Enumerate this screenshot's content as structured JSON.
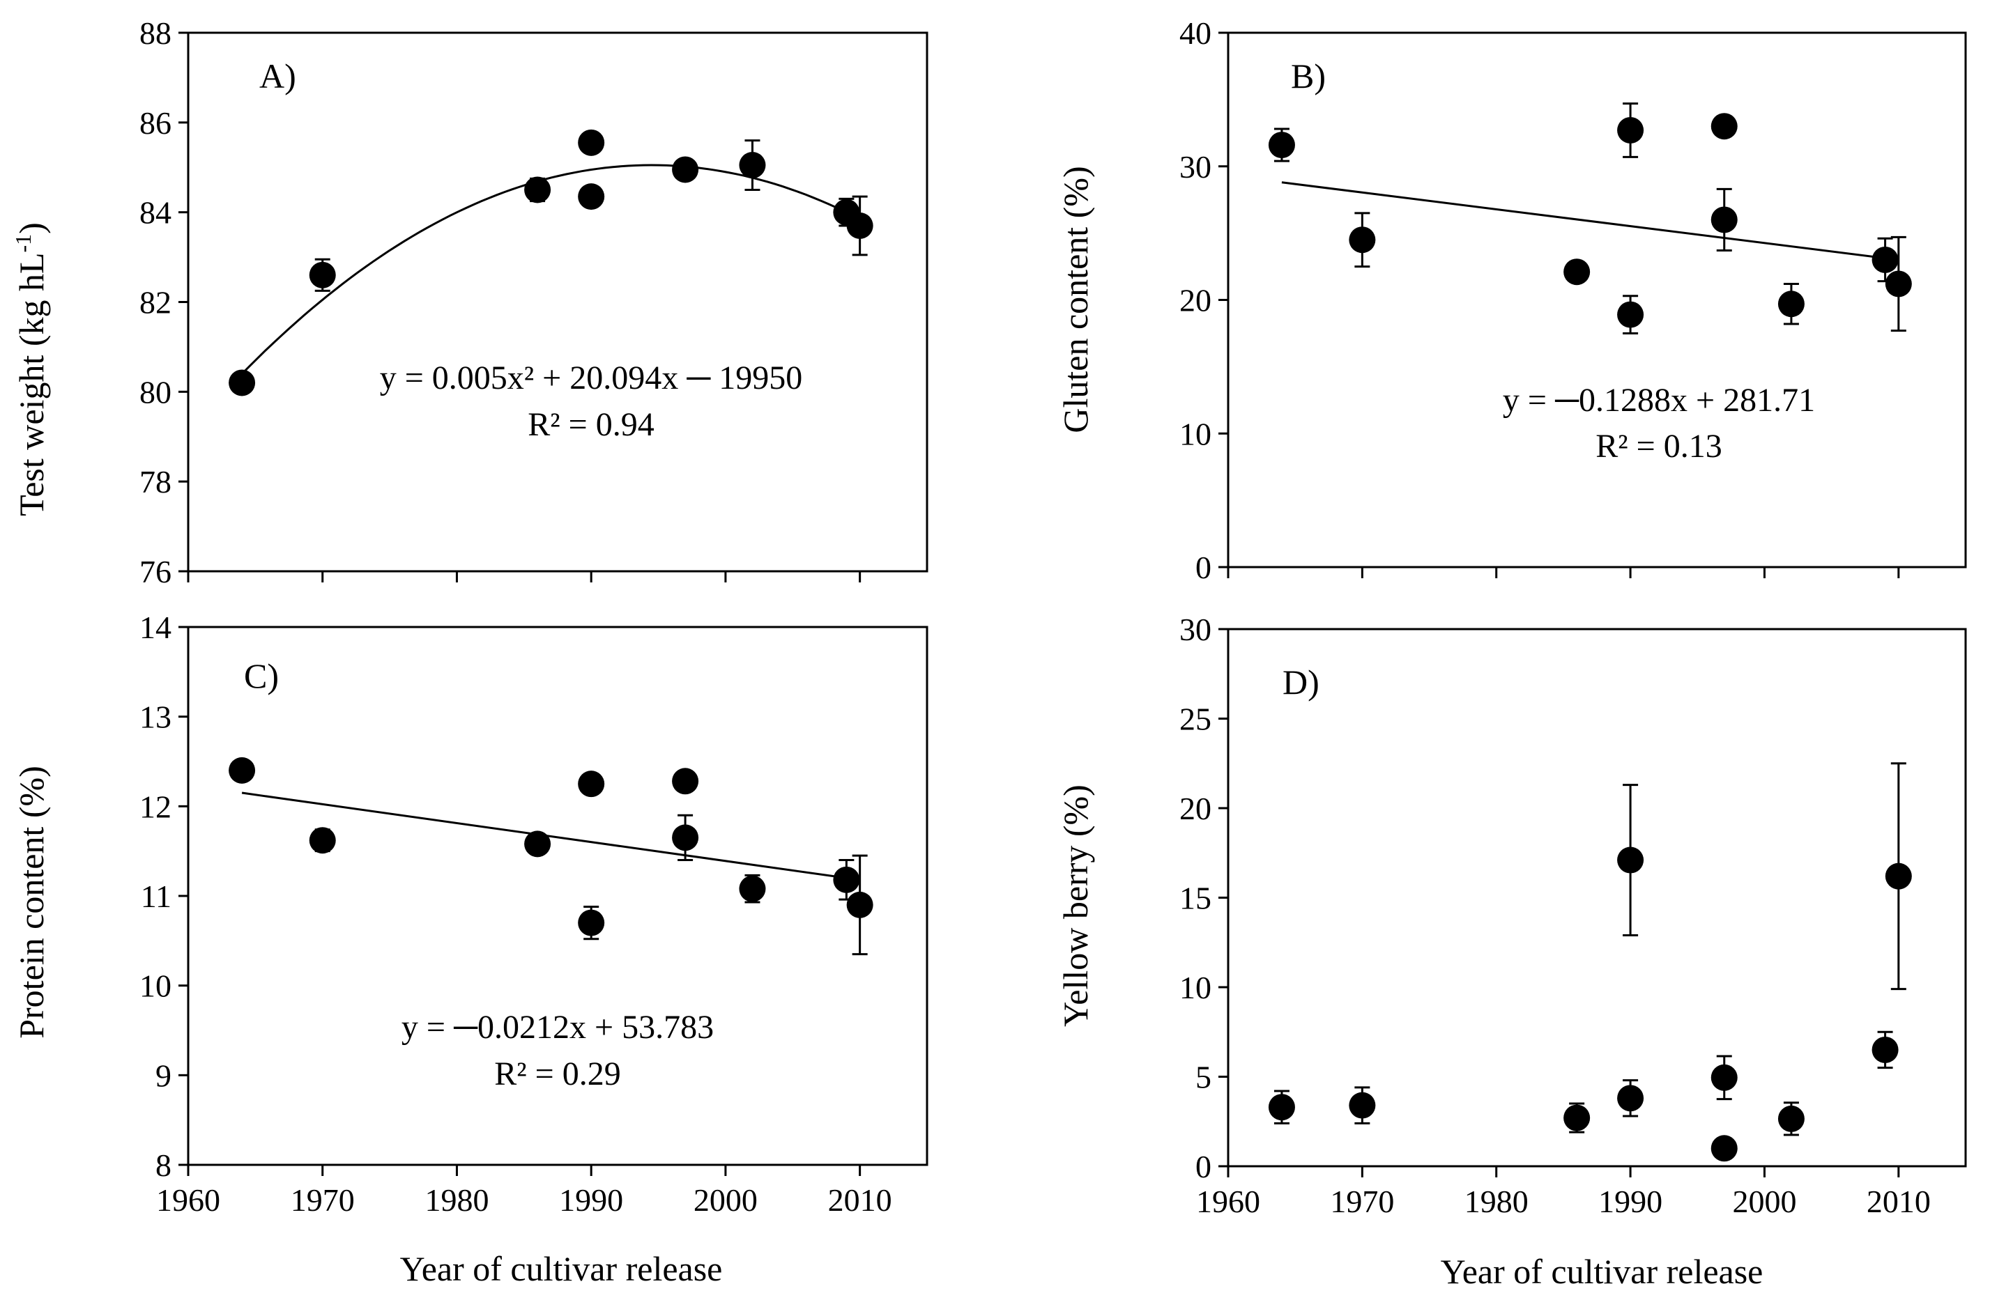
{
  "figure": {
    "xlabel_bottom": "Year of cultivar release"
  },
  "chart_data": [
    {
      "type": "scatter",
      "panel": "A)",
      "ylabel": "Test weight (kg hL",
      "ylabel_sup": "-1",
      "ylabel_close": ")",
      "xlim": [
        1960,
        2015
      ],
      "ylim": [
        76,
        88
      ],
      "xticks": [
        1960,
        1970,
        1980,
        1990,
        2000,
        2010
      ],
      "yticks": [
        76,
        78,
        80,
        82,
        84,
        86,
        88
      ],
      "show_xtick_labels": false,
      "points": [
        {
          "x": 1964,
          "y": 80.2,
          "err": 0.1
        },
        {
          "x": 1970,
          "y": 82.6,
          "err": 0.35
        },
        {
          "x": 1986,
          "y": 84.5,
          "err": 0.25
        },
        {
          "x": 1990,
          "y": 85.55,
          "err": 0.1
        },
        {
          "x": 1990,
          "y": 84.35,
          "err": 0.1
        },
        {
          "x": 1997,
          "y": 84.95,
          "err": 0.15
        },
        {
          "x": 2002,
          "y": 85.05,
          "err": 0.55
        },
        {
          "x": 2009,
          "y": 84.0,
          "err": 0.3
        },
        {
          "x": 2010,
          "y": 83.7,
          "err": 0.65
        }
      ],
      "trend": {
        "kind": "quadratic",
        "vertex_x": 1994.5,
        "vertex_y": 85.05,
        "start_x": 1964,
        "start_y": 80.4,
        "end_x": 2010
      },
      "equation": "y = 0.005x² + 20.094x ─ 19950",
      "r2": "R² = 0.94"
    },
    {
      "type": "scatter",
      "panel": "B)",
      "ylabel": "Gluten content (%)",
      "xlim": [
        1960,
        2015
      ],
      "ylim": [
        0,
        40
      ],
      "xticks": [
        1960,
        1970,
        1980,
        1990,
        2000,
        2010
      ],
      "yticks": [
        0,
        10,
        20,
        30,
        40
      ],
      "show_xtick_labels": false,
      "points": [
        {
          "x": 1964,
          "y": 31.6,
          "err": 1.2
        },
        {
          "x": 1970,
          "y": 24.5,
          "err": 2.0
        },
        {
          "x": 1986,
          "y": 22.1,
          "err": 0.5
        },
        {
          "x": 1990,
          "y": 32.7,
          "err": 2.0
        },
        {
          "x": 1990,
          "y": 18.9,
          "err": 1.4
        },
        {
          "x": 1997,
          "y": 33.0,
          "err": 0.3
        },
        {
          "x": 1997,
          "y": 26.0,
          "err": 2.3
        },
        {
          "x": 2002,
          "y": 19.7,
          "err": 1.5
        },
        {
          "x": 2009,
          "y": 23.0,
          "err": 1.6
        },
        {
          "x": 2010,
          "y": 21.2,
          "err": 3.5
        }
      ],
      "trend": {
        "kind": "linear",
        "x0": 1964,
        "y0": 28.8,
        "x1": 2010,
        "y1": 23.0
      },
      "equation": "y = ─0.1288x + 281.71",
      "r2": "R² = 0.13"
    },
    {
      "type": "scatter",
      "panel": "C)",
      "ylabel": "Protein content (%)",
      "xlim": [
        1960,
        2015
      ],
      "ylim": [
        8,
        14
      ],
      "xticks": [
        1960,
        1970,
        1980,
        1990,
        2000,
        2010
      ],
      "yticks": [
        8,
        9,
        10,
        11,
        12,
        13,
        14
      ],
      "show_xtick_labels": true,
      "points": [
        {
          "x": 1964,
          "y": 12.4,
          "err": 0.05
        },
        {
          "x": 1970,
          "y": 11.62,
          "err": 0.12
        },
        {
          "x": 1986,
          "y": 11.58,
          "err": 0.05
        },
        {
          "x": 1990,
          "y": 12.25,
          "err": 0.05
        },
        {
          "x": 1990,
          "y": 10.7,
          "err": 0.18
        },
        {
          "x": 1997,
          "y": 12.28,
          "err": 0.05
        },
        {
          "x": 1997,
          "y": 11.65,
          "err": 0.25
        },
        {
          "x": 2002,
          "y": 11.08,
          "err": 0.15
        },
        {
          "x": 2009,
          "y": 11.18,
          "err": 0.22
        },
        {
          "x": 2010,
          "y": 10.9,
          "err": 0.55
        }
      ],
      "trend": {
        "kind": "linear",
        "x0": 1964,
        "y0": 12.15,
        "x1": 2009,
        "y1": 11.2
      },
      "equation": "y = ─0.0212x + 53.783",
      "r2": "R² = 0.29"
    },
    {
      "type": "scatter",
      "panel": "D)",
      "ylabel": "Yellow berry (%)",
      "xlim": [
        1960,
        2015
      ],
      "ylim": [
        0,
        30
      ],
      "xticks": [
        1960,
        1970,
        1980,
        1990,
        2000,
        2010
      ],
      "yticks": [
        0,
        5,
        10,
        15,
        20,
        25,
        30
      ],
      "show_xtick_labels": true,
      "points": [
        {
          "x": 1964,
          "y": 3.3,
          "err": 0.9
        },
        {
          "x": 1970,
          "y": 3.4,
          "err": 1.0
        },
        {
          "x": 1986,
          "y": 2.7,
          "err": 0.8
        },
        {
          "x": 1990,
          "y": 17.1,
          "err": 4.2
        },
        {
          "x": 1990,
          "y": 3.8,
          "err": 1.0
        },
        {
          "x": 1997,
          "y": 4.95,
          "err": 1.2
        },
        {
          "x": 1997,
          "y": 1.0,
          "err": 0.1
        },
        {
          "x": 2002,
          "y": 2.65,
          "err": 0.9
        },
        {
          "x": 2009,
          "y": 6.5,
          "err": 1.0
        },
        {
          "x": 2010,
          "y": 16.2,
          "err": 6.3
        }
      ]
    }
  ]
}
